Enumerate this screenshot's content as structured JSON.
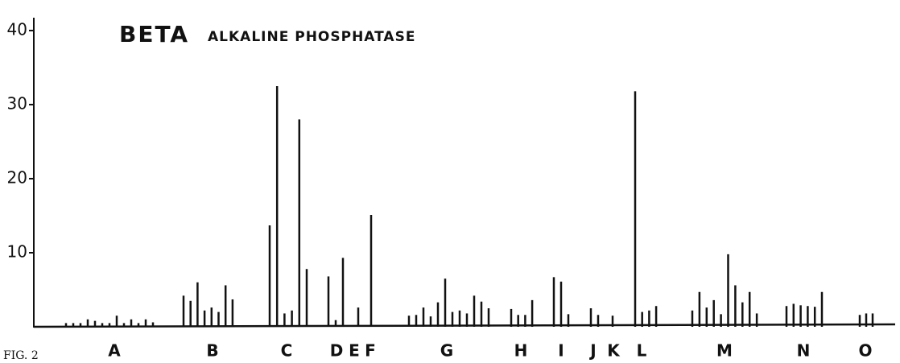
{
  "chart_data": {
    "type": "bar",
    "title": "BETA",
    "subtitle": "ALKALINE PHOSPHATASE",
    "caption": "FIG. 2",
    "ylim": [
      0,
      43
    ],
    "yticks": [
      10,
      20,
      30,
      40
    ],
    "color": "#111111",
    "groups": [
      {
        "label": "A",
        "values": [
          0.5,
          0.5,
          0.5,
          1,
          0.8,
          0.5,
          0.5,
          1.5,
          0.5,
          1,
          0.5,
          1,
          0.6
        ]
      },
      {
        "label": "B",
        "values": [
          4.2,
          3.5,
          6,
          2.2,
          2.6,
          2,
          5.6,
          3.7
        ]
      },
      {
        "label": "C",
        "values": [
          13.7,
          32.5,
          1.8,
          2.2,
          28,
          7.8
        ]
      },
      {
        "label": "D",
        "values": [
          6.8,
          0.9,
          9.3
        ]
      },
      {
        "label": "E",
        "values": [
          2.6
        ]
      },
      {
        "label": "F",
        "values": [
          15.1
        ]
      },
      {
        "label": "G",
        "values": [
          1.5,
          1.6,
          2.6,
          1.4,
          3.3,
          6.5,
          2,
          2.2,
          1.8,
          4.2,
          3.4,
          2.5
        ]
      },
      {
        "label": "H",
        "values": [
          2.4,
          1.6,
          1.6,
          3.6
        ]
      },
      {
        "label": "I",
        "values": [
          6.7,
          6.1,
          1.7
        ]
      },
      {
        "label": "J",
        "values": [
          2.5,
          1.6
        ]
      },
      {
        "label": "K",
        "values": [
          1.5
        ]
      },
      {
        "label": "L",
        "values": [
          31.8,
          2,
          2.2,
          2.8
        ]
      },
      {
        "label": "M",
        "values": [
          2.2,
          4.7,
          2.6,
          3.6,
          1.7,
          9.8,
          5.6,
          3.3,
          4.7,
          1.8
        ]
      },
      {
        "label": "N",
        "values": [
          2.8,
          3.1,
          2.9,
          2.8,
          2.7,
          4.7
        ]
      },
      {
        "label": "O",
        "values": [
          1.6,
          1.8,
          1.8
        ]
      }
    ]
  }
}
